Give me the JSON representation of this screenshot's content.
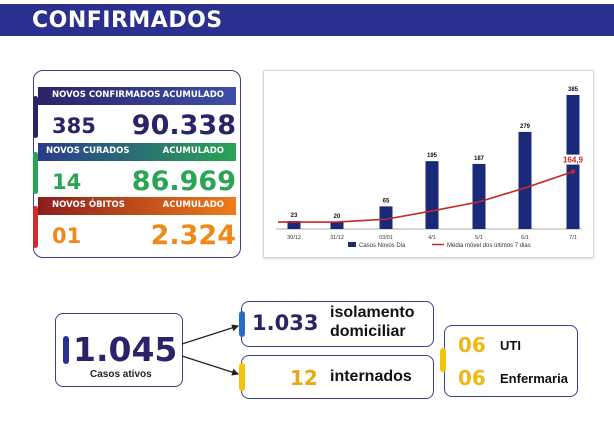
{
  "header": {
    "title": "CONFIRMADOS"
  },
  "stats": {
    "confirmed": {
      "label": "NOVOS CONFIRMADOS",
      "acc_label": "ACUMULADO",
      "new": "385",
      "total": "90.338"
    },
    "recovered": {
      "label": "NOVOS CURADOS",
      "acc_label": "ACUMULADO",
      "new": "14",
      "total": "86.969"
    },
    "deaths": {
      "label": "NOVOS ÓBITOS",
      "acc_label": "ACUMULADO",
      "new": "01",
      "total": "2.324"
    }
  },
  "colors": {
    "navy": "#2b2368",
    "green": "#2aa455",
    "orange": "#ef8a1a",
    "red": "#d02c2c",
    "yellow": "#f1c40f",
    "bar": "#1b2a78"
  },
  "chart_data": {
    "type": "bar",
    "categories": [
      "30/12",
      "31/12",
      "03/01",
      "4/1",
      "5/1",
      "6/1",
      "7/1"
    ],
    "series": [
      {
        "name": "Casos Novos Dia",
        "type": "bar",
        "values": [
          23,
          20,
          65,
          195,
          187,
          279,
          385
        ]
      },
      {
        "name": "Média móvel dos últimos 7 dias",
        "type": "line",
        "values": [
          20,
          20,
          28,
          52,
          78,
          118,
          164.9
        ]
      }
    ],
    "highlight_label": "164,9",
    "ylim": [
      0,
      400
    ]
  },
  "active": {
    "value": "1.045",
    "label": "Casos ativos"
  },
  "home": {
    "value": "1.033",
    "label_line1": "isolamento",
    "label_line2": "domiciliar"
  },
  "hospital": {
    "value": "12",
    "label": "internados"
  },
  "hospital_split": {
    "uti": {
      "value": "06",
      "label": "UTI"
    },
    "ward": {
      "value": "06",
      "label": "Enfermaria"
    }
  }
}
